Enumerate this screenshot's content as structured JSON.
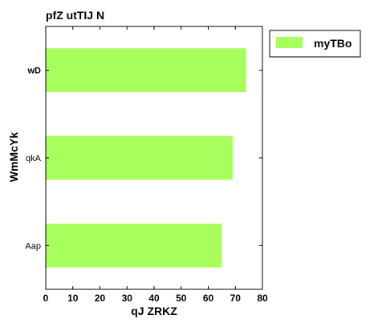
{
  "chart_data": {
    "type": "bar",
    "orientation": "horizontal",
    "title": "pfZ utTIJ N",
    "xlabel": "qJ ZRKZ",
    "ylabel": "WmMcYk",
    "categories": [
      "wD",
      "qkA",
      "Aap"
    ],
    "series": [
      {
        "name": "myTBo",
        "values": [
          74,
          69,
          65
        ],
        "color": "#a6ff5a"
      }
    ],
    "xlim": [
      0,
      80
    ],
    "xticks": [
      "0",
      "10",
      "20",
      "30",
      "40",
      "50",
      "60",
      "70",
      "80"
    ],
    "grid": false,
    "legend_position": "outside-right-top"
  }
}
